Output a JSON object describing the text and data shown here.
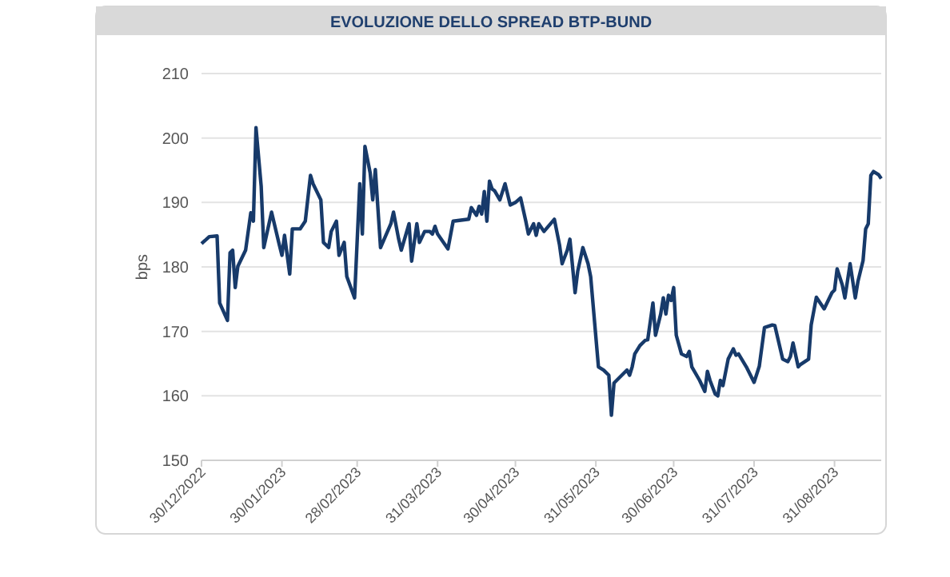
{
  "chart_data": {
    "type": "line",
    "title": "EVOLUZIONE DELLO SPREAD BTP-BUND",
    "ylabel": "bps",
    "x": [
      "2022-12-30",
      "2023-01-02",
      "2023-01-05",
      "2023-01-06",
      "2023-01-09",
      "2023-01-10",
      "2023-01-11",
      "2023-01-12",
      "2023-01-13",
      "2023-01-16",
      "2023-01-18",
      "2023-01-19",
      "2023-01-20",
      "2023-01-22",
      "2023-01-23",
      "2023-01-26",
      "2023-01-29",
      "2023-01-30",
      "2023-01-31",
      "2023-02-02",
      "2023-02-03",
      "2023-02-06",
      "2023-02-08",
      "2023-02-10",
      "2023-02-11",
      "2023-02-14",
      "2023-02-15",
      "2023-02-17",
      "2023-02-18",
      "2023-02-20",
      "2023-02-21",
      "2023-02-23",
      "2023-02-24",
      "2023-02-27",
      "2023-03-01",
      "2023-03-02",
      "2023-03-03",
      "2023-03-05",
      "2023-03-06",
      "2023-03-07",
      "2023-03-09",
      "2023-03-13",
      "2023-03-14",
      "2023-03-16",
      "2023-03-17",
      "2023-03-20",
      "2023-03-21",
      "2023-03-23",
      "2023-03-24",
      "2023-03-26",
      "2023-03-28",
      "2023-03-29",
      "2023-03-30",
      "2023-03-31",
      "2023-04-04",
      "2023-04-06",
      "2023-04-12",
      "2023-04-13",
      "2023-04-15",
      "2023-04-16",
      "2023-04-17",
      "2023-04-18",
      "2023-04-19",
      "2023-04-20",
      "2023-04-21",
      "2023-04-22",
      "2023-04-24",
      "2023-04-26",
      "2023-04-28",
      "2023-04-30",
      "2023-05-02",
      "2023-05-04",
      "2023-05-05",
      "2023-05-07",
      "2023-05-08",
      "2023-05-09",
      "2023-05-11",
      "2023-05-15",
      "2023-05-17",
      "2023-05-18",
      "2023-05-20",
      "2023-05-21",
      "2023-05-23",
      "2023-05-24",
      "2023-05-26",
      "2023-05-28",
      "2023-05-29",
      "2023-06-01",
      "2023-06-03",
      "2023-06-05",
      "2023-06-06",
      "2023-06-07",
      "2023-06-09",
      "2023-06-11",
      "2023-06-12",
      "2023-06-13",
      "2023-06-14",
      "2023-06-15",
      "2023-06-17",
      "2023-06-19",
      "2023-06-20",
      "2023-06-22",
      "2023-06-23",
      "2023-06-25",
      "2023-06-26",
      "2023-06-27",
      "2023-06-28",
      "2023-06-29",
      "2023-06-30",
      "2023-07-01",
      "2023-07-03",
      "2023-07-05",
      "2023-07-06",
      "2023-07-07",
      "2023-07-10",
      "2023-07-12",
      "2023-07-13",
      "2023-07-14",
      "2023-07-16",
      "2023-07-17",
      "2023-07-18",
      "2023-07-19",
      "2023-07-21",
      "2023-07-23",
      "2023-07-24",
      "2023-07-25",
      "2023-07-28",
      "2023-07-31",
      "2023-08-02",
      "2023-08-04",
      "2023-08-07",
      "2023-08-08",
      "2023-08-11",
      "2023-08-13",
      "2023-08-14",
      "2023-08-15",
      "2023-08-17",
      "2023-08-18",
      "2023-08-21",
      "2023-08-22",
      "2023-08-24",
      "2023-08-27",
      "2023-08-30",
      "2023-08-31",
      "2023-09-01",
      "2023-09-03",
      "2023-09-04",
      "2023-09-06",
      "2023-09-08",
      "2023-09-09",
      "2023-09-11",
      "2023-09-12",
      "2023-09-13",
      "2023-09-14",
      "2023-09-15",
      "2023-09-17",
      "2023-09-18"
    ],
    "series": [
      {
        "color": "#173a6a",
        "values": [
          183.6,
          184.7,
          184.8,
          174.4,
          171.7,
          182.2,
          182.6,
          176.8,
          180.1,
          182.6,
          188.4,
          187.1,
          201.6,
          192.5,
          183,
          188.5,
          183.4,
          181.8,
          184.9,
          178.9,
          185.9,
          185.9,
          187.1,
          194.2,
          192.9,
          190.4,
          183.8,
          183,
          185.5,
          187.1,
          181.8,
          183.8,
          178.5,
          175.2,
          192.9,
          185.1,
          198.7,
          194.6,
          190.4,
          195.1,
          183,
          186.7,
          188.5,
          184.3,
          182.6,
          186.7,
          180.9,
          186.7,
          183.8,
          185.5,
          185.5,
          185.1,
          186.3,
          185.1,
          182.8,
          187.1,
          187.4,
          189.2,
          188,
          189.4,
          188.2,
          191.7,
          187.1,
          193.3,
          192.1,
          191.8,
          190.4,
          192.9,
          189.6,
          190,
          190.7,
          187.1,
          185.1,
          186.7,
          184.9,
          186.7,
          185.5,
          187.4,
          183.4,
          180.5,
          182.6,
          184.3,
          176,
          179.3,
          183,
          180.5,
          178.5,
          164.5,
          164,
          163.2,
          157,
          162,
          162.8,
          163.6,
          164,
          163.2,
          164.5,
          166.5,
          167.8,
          168.6,
          168.7,
          174.4,
          169.4,
          172.7,
          175.2,
          172.7,
          175.6,
          174.8,
          176.8,
          169.4,
          166.5,
          166.1,
          166.9,
          164.5,
          162.4,
          160.7,
          163.8,
          162.4,
          160.3,
          160,
          162.4,
          161.6,
          165.7,
          167.3,
          166.3,
          166.5,
          164.5,
          162.1,
          164.6,
          170.6,
          171,
          170.9,
          165.7,
          165.3,
          166.1,
          168.2,
          164.5,
          164.9,
          165.7,
          171,
          175.3,
          173.5,
          176,
          176.4,
          179.7,
          177.2,
          175.2,
          180.5,
          175.2,
          177.7,
          181,
          185.9,
          186.7,
          194.2,
          194.8,
          194.3,
          193.7
        ]
      }
    ],
    "xlim": [
      "2022-12-30",
      "2023-09-18"
    ],
    "xticks": [
      {
        "value": "2022-12-30",
        "label": "30/12/2022"
      },
      {
        "value": "2023-01-30",
        "label": "30/01/2023"
      },
      {
        "value": "2023-02-28",
        "label": "28/02/2023"
      },
      {
        "value": "2023-03-31",
        "label": "31/03/2023"
      },
      {
        "value": "2023-04-30",
        "label": "30/04/2023"
      },
      {
        "value": "2023-05-31",
        "label": "31/05/2023"
      },
      {
        "value": "2023-06-30",
        "label": "30/06/2023"
      },
      {
        "value": "2023-07-31",
        "label": "31/07/2023"
      },
      {
        "value": "2023-08-31",
        "label": "31/08/2023"
      }
    ],
    "ylim": [
      150,
      210
    ],
    "yticks": [
      150,
      160,
      170,
      180,
      190,
      200,
      210
    ],
    "grid": "y"
  }
}
